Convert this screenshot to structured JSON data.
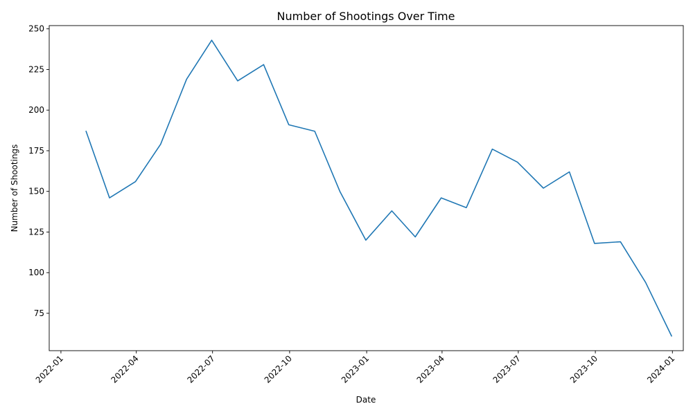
{
  "chart_data": {
    "type": "line",
    "title": "Number of Shootings Over Time",
    "xlabel": "Date",
    "ylabel": "Number of Shootings",
    "x_axis_type": "date",
    "xlim": [
      "2021-12-18",
      "2024-01-14"
    ],
    "ylim": [
      52,
      252
    ],
    "x_ticks": [
      "2022-01-01",
      "2022-04-01",
      "2022-07-01",
      "2022-10-01",
      "2023-01-01",
      "2023-04-01",
      "2023-07-01",
      "2023-10-01",
      "2024-01-01"
    ],
    "x_tick_labels": [
      "2022-01",
      "2022-04",
      "2022-07",
      "2022-10",
      "2023-01",
      "2023-04",
      "2023-07",
      "2023-10",
      "2024-01"
    ],
    "y_ticks": [
      75,
      100,
      125,
      150,
      175,
      200,
      225,
      250
    ],
    "y_tick_labels": [
      "75",
      "100",
      "125",
      "150",
      "175",
      "200",
      "225",
      "250"
    ],
    "grid": false,
    "legend": "none",
    "color": "#1f77b4",
    "series": [
      {
        "x": [
          "2022-01-31",
          "2022-02-28",
          "2022-03-31",
          "2022-04-30",
          "2022-05-31",
          "2022-06-30",
          "2022-07-31",
          "2022-08-31",
          "2022-09-30",
          "2022-10-31",
          "2022-11-30",
          "2022-12-31",
          "2023-01-31",
          "2023-02-28",
          "2023-03-31",
          "2023-04-30",
          "2023-05-31",
          "2023-06-30",
          "2023-07-31",
          "2023-08-31",
          "2023-09-30",
          "2023-10-31",
          "2023-11-30",
          "2023-12-31"
        ],
        "values": [
          187,
          146,
          156,
          179,
          219,
          243,
          218,
          228,
          191,
          187,
          150,
          120,
          138,
          122,
          146,
          140,
          176,
          168,
          152,
          162,
          118,
          119,
          94,
          61
        ]
      }
    ]
  }
}
